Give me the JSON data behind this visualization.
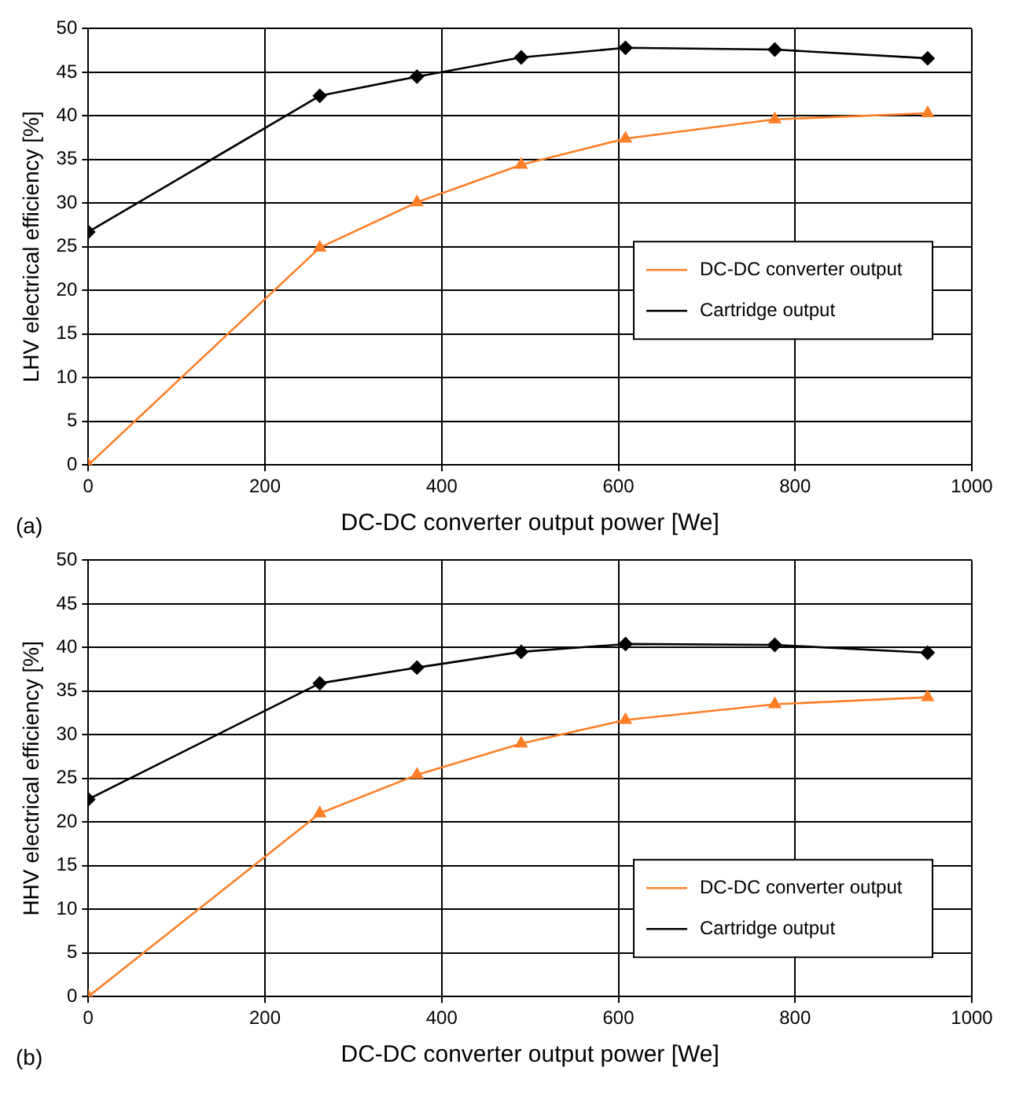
{
  "chart_data": [
    {
      "type": "line",
      "xlabel": "DC-DC converter output power [We]",
      "ylabel": "LHV electrical efficiency [%]",
      "xlim": [
        0,
        1000
      ],
      "xticks": [
        0,
        200,
        400,
        600,
        800,
        1000
      ],
      "ylim": [
        0,
        50
      ],
      "yticks": [
        0,
        5,
        10,
        15,
        20,
        25,
        30,
        35,
        40,
        45,
        50
      ],
      "grid": true,
      "legend": "right",
      "annotations": [
        "(a)"
      ],
      "x": [
        0,
        262,
        372,
        490,
        608,
        777,
        950
      ],
      "series": [
        {
          "name": "DC-DC converter output",
          "color": "#ff7f27",
          "marker": "triangle",
          "values": [
            0,
            24.9,
            30.1,
            34.4,
            37.4,
            39.6,
            40.3
          ]
        },
        {
          "name": "Cartridge output",
          "color": "#000000",
          "marker": "diamond",
          "values": [
            26.7,
            42.3,
            44.5,
            46.7,
            47.8,
            47.6,
            46.6
          ]
        }
      ]
    },
    {
      "type": "line",
      "xlabel": "DC-DC converter output power [We]",
      "ylabel": "HHV electrical efficiency [%]",
      "xlim": [
        0,
        1000
      ],
      "xticks": [
        0,
        200,
        400,
        600,
        800,
        1000
      ],
      "ylim": [
        0,
        50
      ],
      "yticks": [
        0,
        5,
        10,
        15,
        20,
        25,
        30,
        35,
        40,
        45,
        50
      ],
      "grid": true,
      "legend": "bottom right",
      "annotations": [
        "(b)"
      ],
      "x": [
        0,
        262,
        372,
        490,
        608,
        777,
        950
      ],
      "series": [
        {
          "name": "DC-DC converter output",
          "color": "#ff7f27",
          "marker": "triangle",
          "values": [
            0,
            21.0,
            25.4,
            29.0,
            31.7,
            33.5,
            34.3
          ]
        },
        {
          "name": "Cartridge output",
          "color": "#000000",
          "marker": "diamond",
          "values": [
            22.6,
            35.9,
            37.7,
            39.5,
            40.4,
            40.3,
            39.4
          ]
        }
      ]
    }
  ]
}
